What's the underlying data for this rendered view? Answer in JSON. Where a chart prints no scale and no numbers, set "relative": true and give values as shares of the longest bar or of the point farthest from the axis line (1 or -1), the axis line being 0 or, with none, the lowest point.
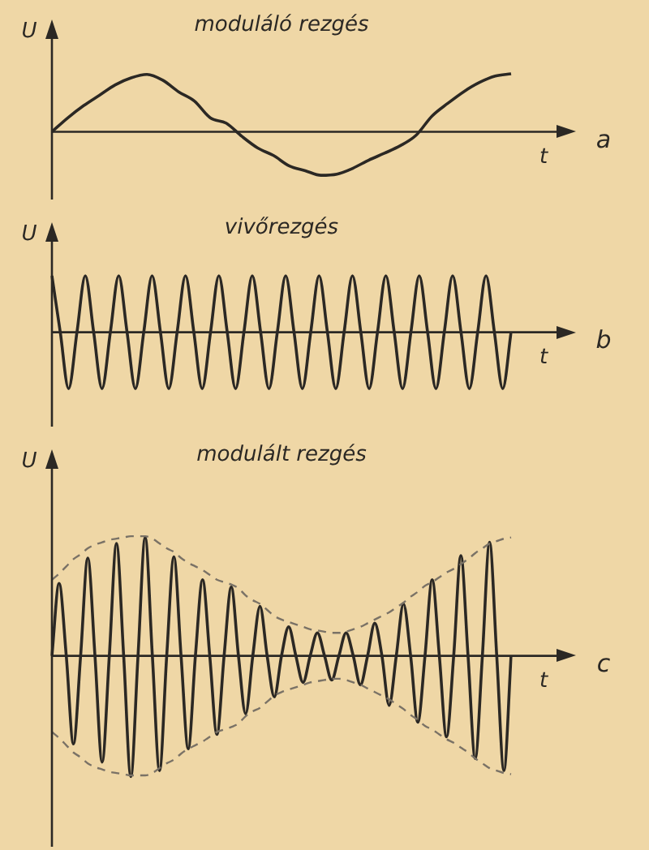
{
  "chart_data": [
    {
      "type": "line",
      "title": "moduláló rezgés",
      "xlabel": "t",
      "ylabel": "U",
      "annotations": [
        "a"
      ],
      "relative": true,
      "marker": "none",
      "line_style": "solid",
      "categories": [
        null,
        null,
        null,
        null,
        null,
        null,
        null,
        null,
        null,
        null,
        null,
        null,
        null,
        null,
        null,
        null,
        null,
        null,
        null,
        null,
        null,
        null,
        null,
        null,
        null,
        null,
        null,
        null,
        null,
        null
      ],
      "series": [
        {
          "color": "#2b2824",
          "values": [
            0,
            0.24,
            0.45,
            0.63,
            0.81,
            0.93,
            0.99,
            0.89,
            0.69,
            0.53,
            0.24,
            0.15,
            -0.08,
            -0.28,
            -0.41,
            -0.59,
            -0.67,
            -0.75,
            -0.73,
            -0.63,
            -0.49,
            -0.37,
            -0.24,
            -0.06,
            0.27,
            0.49,
            0.69,
            0.85,
            0.96,
            1
          ]
        }
      ]
    },
    {
      "type": "line",
      "title": "vivőrezgés",
      "xlabel": "t",
      "ylabel": "U",
      "annotations": [
        "b"
      ],
      "relative": true,
      "marker": "none",
      "line_style": "solid",
      "categories": [
        null,
        null,
        null,
        null,
        null,
        null,
        null,
        null,
        null,
        null,
        null,
        null,
        null,
        null,
        null,
        null,
        null,
        null,
        null,
        null,
        null,
        null,
        null,
        null,
        null,
        null,
        null,
        null,
        null,
        null,
        null,
        null,
        null,
        null,
        null,
        null,
        null,
        null,
        null,
        null,
        null,
        null,
        null,
        null,
        null,
        null,
        null,
        null,
        null,
        null,
        null,
        null,
        null,
        null,
        null,
        null
      ],
      "series": [
        {
          "color": "#2b2824",
          "values": [
            1,
            0,
            -1,
            0,
            1,
            0,
            -1,
            0,
            1,
            0,
            -1,
            0,
            1,
            0,
            -1,
            0,
            1,
            0,
            -1,
            0,
            1,
            0,
            -1,
            0,
            1,
            0,
            -1,
            0,
            1,
            0,
            -1,
            0,
            1,
            0,
            -1,
            0,
            1,
            0,
            -1,
            0,
            1,
            0,
            -1,
            0,
            1,
            0,
            -1,
            0,
            1,
            0,
            -1,
            0,
            1,
            0,
            -1,
            0
          ]
        }
      ]
    },
    {
      "type": "line",
      "title": "modulált rezgés",
      "xlabel": "t",
      "ylabel": "U",
      "annotations": [
        "c"
      ],
      "relative": true,
      "marker": "none",
      "line_style": "solid",
      "categories": [
        null,
        null,
        null,
        null,
        null,
        null,
        null,
        null,
        null,
        null,
        null,
        null,
        null,
        null,
        null,
        null,
        null,
        null,
        null,
        null,
        null,
        null,
        null,
        null,
        null,
        null,
        null,
        null,
        null,
        null,
        null,
        null,
        null,
        null,
        null,
        null,
        null,
        null,
        null,
        null,
        null,
        null,
        null,
        null,
        null,
        null,
        null,
        null,
        null,
        null,
        null,
        null,
        null,
        null,
        null,
        null,
        null,
        null,
        null,
        null,
        null,
        null,
        null,
        null,
        null
      ],
      "series": [
        {
          "color": "#7a7266",
          "line_style": "dashed",
          "values": [
            0.63,
            0.68,
            0.74,
            0.8,
            0.84,
            0.89,
            0.92,
            0.94,
            0.96,
            0.97,
            0.98,
            0.99,
            0.99,
            0.99,
            0.97,
            0.93,
            0.89,
            0.86,
            0.81,
            0.77,
            0.74,
            0.71,
            0.67,
            0.63,
            0.61,
            0.59,
            0.56,
            0.5,
            0.46,
            0.43,
            0.38,
            0.33,
            0.3,
            0.28,
            0.26,
            0.24,
            0.22,
            0.21,
            0.2,
            0.19,
            0.19,
            0.2,
            0.22,
            0.24,
            0.27,
            0.3,
            0.33,
            0.36,
            0.4,
            0.44,
            0.49,
            0.53,
            0.58,
            0.61,
            0.65,
            0.69,
            0.72,
            0.76,
            0.8,
            0.85,
            0.89,
            0.93,
            0.95,
            0.97,
            0.98
          ]
        },
        {
          "color": "#7a7266",
          "line_style": "dashed",
          "values": [
            -0.63,
            -0.68,
            -0.74,
            -0.8,
            -0.84,
            -0.89,
            -0.92,
            -0.94,
            -0.96,
            -0.97,
            -0.98,
            -0.99,
            -0.99,
            -0.99,
            -0.97,
            -0.93,
            -0.89,
            -0.86,
            -0.81,
            -0.77,
            -0.74,
            -0.71,
            -0.67,
            -0.63,
            -0.61,
            -0.59,
            -0.56,
            -0.5,
            -0.46,
            -0.43,
            -0.38,
            -0.33,
            -0.3,
            -0.28,
            -0.26,
            -0.24,
            -0.22,
            -0.21,
            -0.2,
            -0.19,
            -0.19,
            -0.2,
            -0.22,
            -0.24,
            -0.27,
            -0.3,
            -0.33,
            -0.36,
            -0.4,
            -0.44,
            -0.49,
            -0.53,
            -0.58,
            -0.61,
            -0.65,
            -0.69,
            -0.72,
            -0.76,
            -0.8,
            -0.85,
            -0.89,
            -0.93,
            -0.95,
            -0.97,
            -0.98
          ]
        },
        {
          "color": "#2b2824",
          "values": [
            0,
            0.6,
            0,
            -0.73,
            0,
            0.81,
            0,
            -0.88,
            0,
            0.93,
            0,
            -1,
            0,
            0.98,
            0,
            -0.95,
            0,
            0.82,
            0,
            -0.77,
            0,
            0.63,
            0,
            -0.65,
            0,
            0.57,
            0,
            -0.48,
            0,
            0.41,
            0,
            -0.34,
            0,
            0.24,
            0,
            -0.22,
            0,
            0.19,
            0,
            -0.2,
            0,
            0.19,
            0,
            -0.24,
            0,
            0.27,
            0,
            -0.41,
            0,
            0.43,
            0,
            -0.55,
            0,
            0.63,
            0,
            -0.67,
            0,
            0.83,
            0,
            -0.85,
            0,
            0.94,
            0,
            -0.95,
            0
          ]
        }
      ]
    }
  ]
}
